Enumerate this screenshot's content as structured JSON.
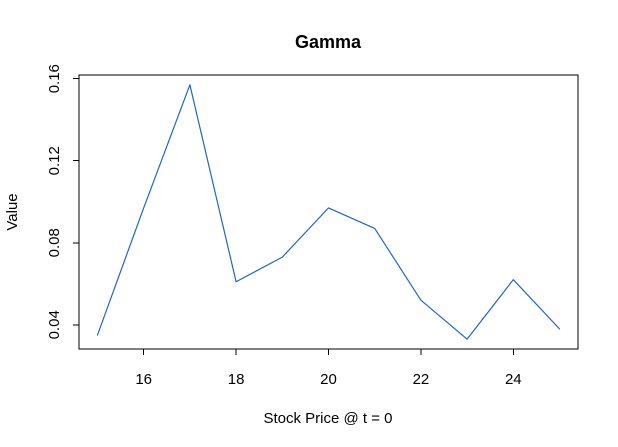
{
  "colors": {
    "series": "#1f66c2",
    "axis": "#000000",
    "background": "#ffffff"
  },
  "chart_data": {
    "type": "line",
    "title": "Gamma",
    "xlabel": "Stock Price @ t = 0",
    "ylabel": "Value",
    "x": [
      15,
      16,
      17,
      18,
      19,
      20,
      21,
      22,
      23,
      24,
      25
    ],
    "series": [
      {
        "values": [
          0.035,
          0.097,
          0.157,
          0.061,
          0.073,
          0.097,
          0.087,
          0.052,
          0.033,
          0.062,
          0.038
        ]
      }
    ],
    "xlim": [
      14.6,
      25.4
    ],
    "ylim": [
      0.0282,
      0.1618
    ],
    "xticks": [
      16,
      18,
      20,
      22,
      24
    ],
    "yticks": [
      0.04,
      0.08,
      0.12,
      0.16
    ],
    "xtick_labels": [
      "16",
      "18",
      "20",
      "22",
      "24"
    ],
    "ytick_labels": [
      "0.04",
      "0.08",
      "0.12",
      "0.16"
    ],
    "grid": false,
    "legend": "none"
  }
}
